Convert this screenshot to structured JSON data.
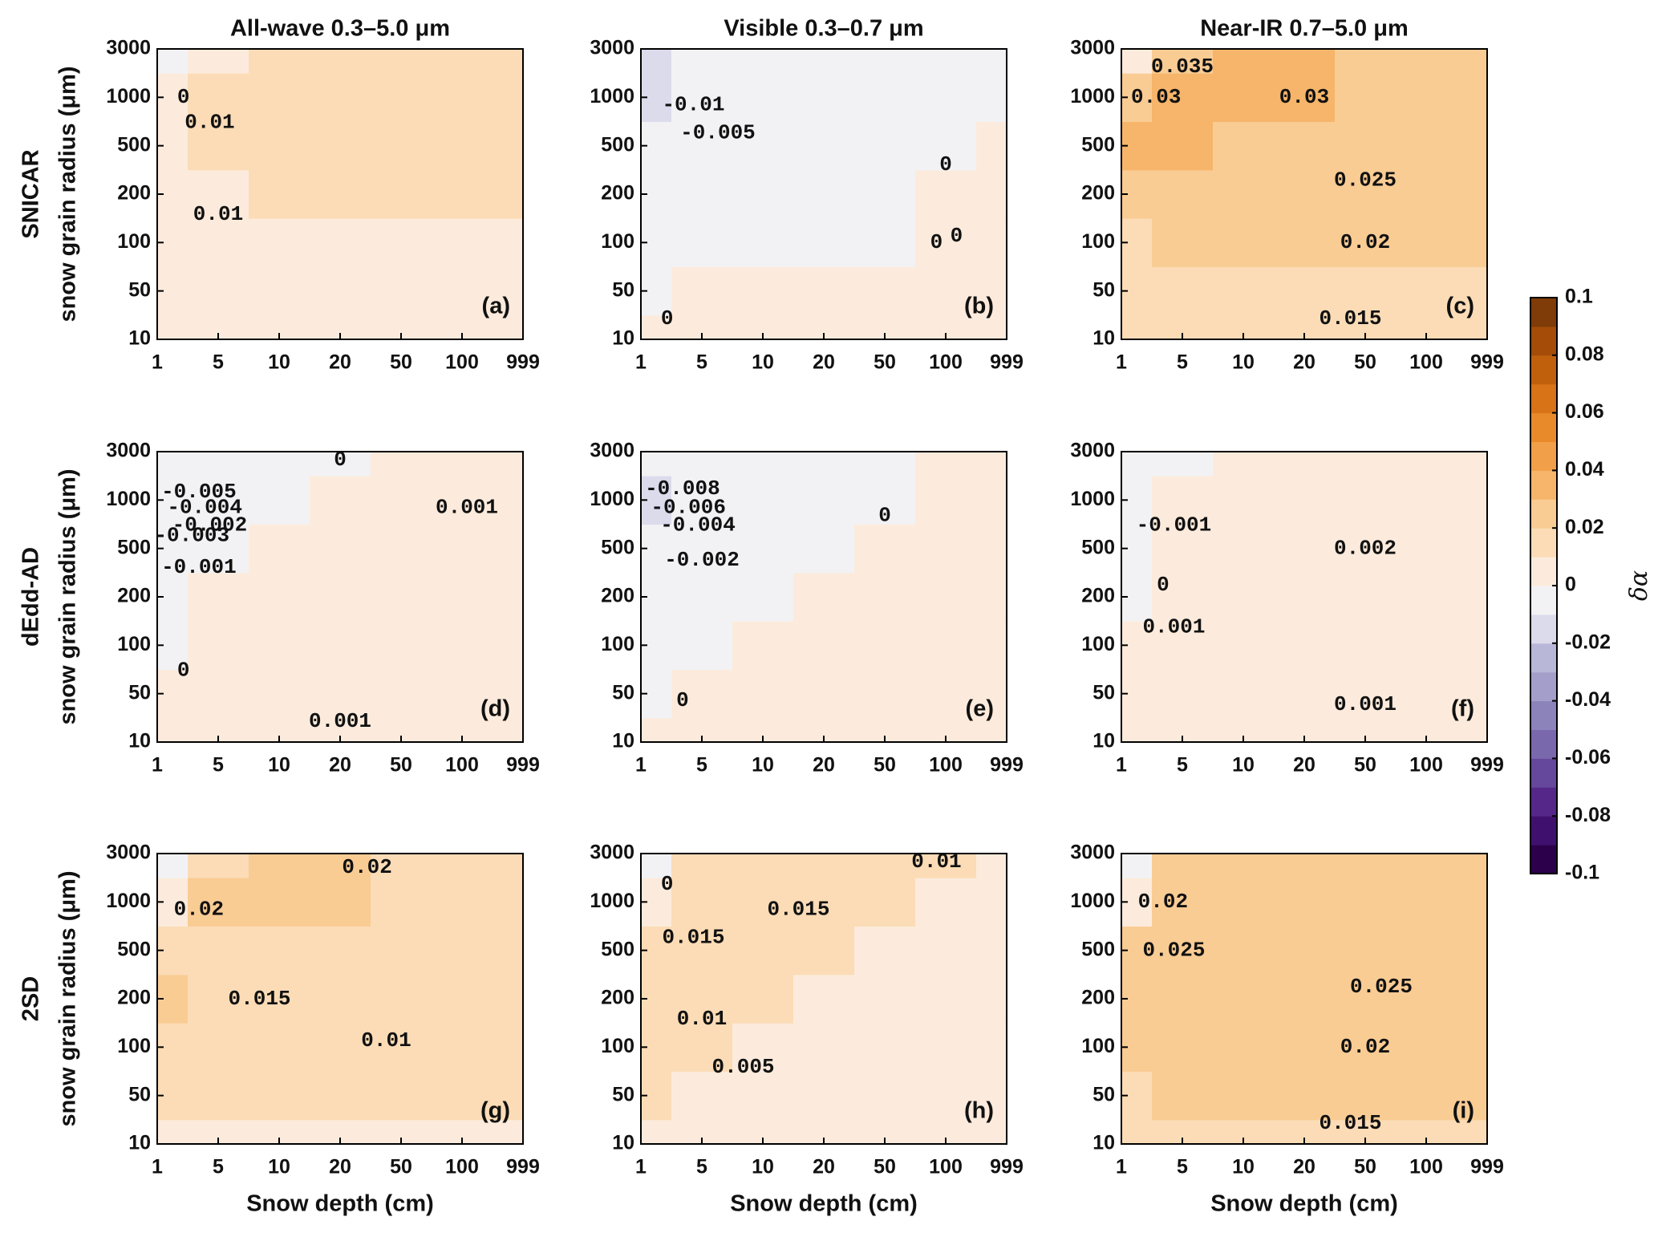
{
  "chart_data": [
    {
      "type": "contour",
      "title": "All-wave 0.3–5.0 μm",
      "row_label": "SNICAR",
      "ylabel": "snow grain radius (μm)",
      "panel_label": "(a)",
      "x": [
        1,
        5,
        10,
        20,
        50,
        100,
        999
      ],
      "y": [
        10,
        50,
        100,
        200,
        500,
        1000,
        3000
      ],
      "z": [
        [
          0.005,
          0.006,
          0.007,
          0.008,
          0.008,
          0.008,
          0.008
        ],
        [
          0.006,
          0.008,
          0.008,
          0.009,
          0.009,
          0.009,
          0.009
        ],
        [
          0.006,
          0.009,
          0.009,
          0.0095,
          0.0095,
          0.0095,
          0.0095
        ],
        [
          0.006,
          0.009,
          0.011,
          0.011,
          0.011,
          0.011,
          0.011
        ],
        [
          0.004,
          0.011,
          0.013,
          0.013,
          0.013,
          0.013,
          0.013
        ],
        [
          0.002,
          0.011,
          0.013,
          0.013,
          0.013,
          0.013,
          0.013
        ],
        [
          -0.002,
          0.008,
          0.012,
          0.013,
          0.013,
          0.013,
          0.013
        ]
      ],
      "contour_labels": [
        {
          "value": 0,
          "x": 2,
          "y": 1000
        },
        {
          "value": 0.01,
          "x": 4,
          "y": 700
        },
        {
          "value": 0.01,
          "x": 5,
          "y": 150
        }
      ]
    },
    {
      "type": "contour",
      "title": "Visible 0.3–0.7 μm",
      "panel_label": "(b)",
      "x": [
        1,
        5,
        10,
        20,
        50,
        100,
        999
      ],
      "y": [
        10,
        50,
        100,
        200,
        500,
        1000,
        3000
      ],
      "z": [
        [
          0.001,
          0.002,
          0.002,
          0.002,
          0.002,
          0.002,
          0.002
        ],
        [
          -0.002,
          0.001,
          0.001,
          0.001,
          0.001,
          0.001,
          0.001
        ],
        [
          -0.004,
          -0.002,
          -0.001,
          -0.001,
          -0.001,
          0.001,
          0.001
        ],
        [
          -0.006,
          -0.003,
          -0.002,
          -0.002,
          -0.001,
          0.001,
          0.001
        ],
        [
          -0.008,
          -0.004,
          -0.003,
          -0.002,
          -0.002,
          -0.001,
          0.001
        ],
        [
          -0.012,
          -0.005,
          -0.003,
          -0.002,
          -0.002,
          -0.002,
          -0.001
        ],
        [
          -0.014,
          -0.008,
          -0.003,
          -0.002,
          -0.002,
          -0.002,
          -0.002
        ]
      ],
      "contour_labels": [
        {
          "value": -0.01,
          "x": 4,
          "y": 900
        },
        {
          "value": -0.005,
          "x": 6,
          "y": 600
        },
        {
          "value": 0,
          "x": 100,
          "y": 350
        },
        {
          "value": 0,
          "x": 90,
          "y": 100
        },
        {
          "value": 0,
          "x": 150,
          "y": 110
        },
        {
          "value": 0,
          "x": 2,
          "y": 20
        }
      ]
    },
    {
      "type": "contour",
      "title": "Near-IR 0.7–5.0 μm",
      "panel_label": "(c)",
      "x": [
        1,
        5,
        10,
        20,
        50,
        100,
        999
      ],
      "y": [
        10,
        50,
        100,
        200,
        500,
        1000,
        3000
      ],
      "z": [
        [
          0.012,
          0.014,
          0.015,
          0.015,
          0.015,
          0.015,
          0.015
        ],
        [
          0.016,
          0.018,
          0.019,
          0.019,
          0.019,
          0.019,
          0.019
        ],
        [
          0.019,
          0.021,
          0.021,
          0.021,
          0.021,
          0.021,
          0.021
        ],
        [
          0.026,
          0.023,
          0.023,
          0.023,
          0.023,
          0.023,
          0.023
        ],
        [
          0.032,
          0.031,
          0.028,
          0.026,
          0.025,
          0.025,
          0.025
        ],
        [
          0.025,
          0.033,
          0.034,
          0.031,
          0.028,
          0.027,
          0.027
        ],
        [
          0.005,
          0.028,
          0.034,
          0.032,
          0.029,
          0.027,
          0.027
        ]
      ],
      "contour_labels": [
        {
          "value": 0.03,
          "x": 2.5,
          "y": 1000
        },
        {
          "value": 0.035,
          "x": 5,
          "y": 2000
        },
        {
          "value": 0.03,
          "x": 20,
          "y": 1000
        },
        {
          "value": 0.025,
          "x": 50,
          "y": 260
        },
        {
          "value": 0.02,
          "x": 50,
          "y": 100
        },
        {
          "value": 0.015,
          "x": 40,
          "y": 20
        }
      ]
    },
    {
      "type": "contour",
      "row_label": "dEdd-AD",
      "ylabel": "snow grain radius (μm)",
      "panel_label": "(d)",
      "x": [
        1,
        5,
        10,
        20,
        50,
        100,
        999
      ],
      "y": [
        10,
        50,
        100,
        200,
        500,
        1000,
        3000
      ],
      "z": [
        [
          0.0005,
          0.0006,
          0.0008,
          0.0009,
          0.001,
          0.001,
          0.001
        ],
        [
          0.0002,
          0.0005,
          0.0005,
          0.0005,
          0.0005,
          0.0005,
          0.0005
        ],
        [
          -0.001,
          0.0005,
          0.0005,
          0.0005,
          0.0005,
          0.0005,
          0.0005
        ],
        [
          -0.004,
          0.0003,
          0.0005,
          0.0005,
          0.0005,
          0.0005,
          0.0005
        ],
        [
          -0.008,
          -0.002,
          0.0004,
          0.0005,
          0.0005,
          0.0007,
          0.0009
        ],
        [
          -0.008,
          -0.004,
          -0.001,
          0.0002,
          0.0008,
          0.001,
          0.001
        ],
        [
          -0.005,
          -0.003,
          -0.002,
          -0.0003,
          0.0005,
          0.0008,
          0.0008
        ]
      ],
      "contour_labels": [
        {
          "value": -0.005,
          "x": 3,
          "y": 1200
        },
        {
          "value": -0.004,
          "x": 3.5,
          "y": 900
        },
        {
          "value": -0.003,
          "x": 2.5,
          "y": 600
        },
        {
          "value": -0.002,
          "x": 4,
          "y": 700
        },
        {
          "value": -0.001,
          "x": 3,
          "y": 350
        },
        {
          "value": 0,
          "x": 2,
          "y": 70
        },
        {
          "value": 0,
          "x": 20,
          "y": 2500
        },
        {
          "value": 0.001,
          "x": 20,
          "y": 20
        },
        {
          "value": 0.001,
          "x": 120,
          "y": 900
        }
      ]
    },
    {
      "type": "contour",
      "panel_label": "(e)",
      "x": [
        1,
        5,
        10,
        20,
        50,
        100,
        999
      ],
      "y": [
        10,
        50,
        100,
        200,
        500,
        1000,
        3000
      ],
      "z": [
        [
          0.001,
          0.002,
          0.002,
          0.002,
          0.002,
          0.002,
          0.002
        ],
        [
          -0.001,
          0.001,
          0.001,
          0.001,
          0.001,
          0.001,
          0.001
        ],
        [
          -0.003,
          -0.001,
          0.0005,
          0.001,
          0.001,
          0.001,
          0.001
        ],
        [
          -0.005,
          -0.002,
          -0.001,
          0.0005,
          0.001,
          0.001,
          0.001
        ],
        [
          -0.007,
          -0.003,
          -0.002,
          -0.001,
          0.0005,
          0.001,
          0.001
        ],
        [
          -0.011,
          -0.005,
          -0.002,
          -0.001,
          -0.0005,
          0.001,
          0.001
        ],
        [
          -0.009,
          -0.006,
          -0.003,
          -0.002,
          -0.001,
          0.0005,
          0.001
        ]
      ],
      "contour_labels": [
        {
          "value": -0.008,
          "x": 3,
          "y": 1300
        },
        {
          "value": -0.006,
          "x": 3.5,
          "y": 900
        },
        {
          "value": -0.004,
          "x": 4.5,
          "y": 700
        },
        {
          "value": -0.002,
          "x": 5,
          "y": 400
        },
        {
          "value": 0,
          "x": 50,
          "y": 800
        },
        {
          "value": 0,
          "x": 3,
          "y": 40
        }
      ]
    },
    {
      "type": "contour",
      "panel_label": "(f)",
      "x": [
        1,
        5,
        10,
        20,
        50,
        100,
        999
      ],
      "y": [
        10,
        50,
        100,
        200,
        500,
        1000,
        3000
      ],
      "z": [
        [
          0.0008,
          0.0009,
          0.001,
          0.001,
          0.001,
          0.001,
          0.001
        ],
        [
          0.0005,
          0.0012,
          0.0012,
          0.0012,
          0.0012,
          0.0012,
          0.0012
        ],
        [
          0.0001,
          0.0013,
          0.0014,
          0.0014,
          0.0014,
          0.0014,
          0.0014
        ],
        [
          -0.002,
          0.0014,
          0.0016,
          0.0017,
          0.0018,
          0.0018,
          0.0018
        ],
        [
          -0.004,
          0.0005,
          0.0017,
          0.0019,
          0.002,
          0.002,
          0.002
        ],
        [
          -0.005,
          0.0002,
          0.0018,
          0.002,
          0.0022,
          0.0022,
          0.0022
        ],
        [
          -0.003,
          -0.0005,
          0.0018,
          0.002,
          0.0022,
          0.0022,
          0.0022
        ]
      ],
      "contour_labels": [
        {
          "value": -0.001,
          "x": 4,
          "y": 700
        },
        {
          "value": 0,
          "x": 3,
          "y": 250
        },
        {
          "value": 0.001,
          "x": 4,
          "y": 130
        },
        {
          "value": 0.002,
          "x": 50,
          "y": 500
        },
        {
          "value": 0.001,
          "x": 50,
          "y": 35
        }
      ]
    },
    {
      "type": "contour",
      "row_label": "2SD",
      "ylabel": "snow grain radius (μm)",
      "xlabel": "Snow depth (cm)",
      "panel_label": "(g)",
      "x": [
        1,
        5,
        10,
        20,
        50,
        100,
        999
      ],
      "y": [
        10,
        50,
        100,
        200,
        500,
        1000,
        3000
      ],
      "z": [
        [
          0.008,
          0.009,
          0.009,
          0.009,
          0.009,
          0.009,
          0.009
        ],
        [
          0.01,
          0.011,
          0.011,
          0.011,
          0.011,
          0.011,
          0.011
        ],
        [
          0.012,
          0.013,
          0.013,
          0.012,
          0.011,
          0.011,
          0.011
        ],
        [
          0.021,
          0.015,
          0.015,
          0.014,
          0.013,
          0.013,
          0.013
        ],
        [
          0.013,
          0.018,
          0.017,
          0.016,
          0.015,
          0.015,
          0.015
        ],
        [
          0.006,
          0.02,
          0.022,
          0.021,
          0.018,
          0.017,
          0.017
        ],
        [
          -0.002,
          0.017,
          0.02,
          0.02,
          0.019,
          0.018,
          0.018
        ]
      ],
      "contour_labels": [
        {
          "value": 0.02,
          "x": 3,
          "y": 900
        },
        {
          "value": 0.02,
          "x": 30,
          "y": 2200
        },
        {
          "value": 0.015,
          "x": 8,
          "y": 200
        },
        {
          "value": 0.01,
          "x": 40,
          "y": 110
        }
      ]
    },
    {
      "type": "contour",
      "xlabel": "Snow depth (cm)",
      "panel_label": "(h)",
      "x": [
        1,
        5,
        10,
        20,
        50,
        100,
        999
      ],
      "y": [
        10,
        50,
        100,
        200,
        500,
        1000,
        3000
      ],
      "z": [
        [
          0.006,
          0.006,
          0.005,
          0.004,
          0.004,
          0.004,
          0.004
        ],
        [
          0.011,
          0.009,
          0.006,
          0.005,
          0.004,
          0.004,
          0.004
        ],
        [
          0.012,
          0.012,
          0.009,
          0.006,
          0.005,
          0.004,
          0.004
        ],
        [
          0.013,
          0.013,
          0.012,
          0.009,
          0.006,
          0.005,
          0.005
        ],
        [
          0.012,
          0.015,
          0.014,
          0.012,
          0.009,
          0.007,
          0.006
        ],
        [
          0.008,
          0.016,
          0.016,
          0.015,
          0.012,
          0.009,
          0.008
        ],
        [
          -0.002,
          0.013,
          0.016,
          0.016,
          0.014,
          0.011,
          0.009
        ]
      ],
      "contour_labels": [
        {
          "value": 0,
          "x": 2,
          "y": 1500
        },
        {
          "value": 0.015,
          "x": 4,
          "y": 600
        },
        {
          "value": 0.015,
          "x": 15,
          "y": 900
        },
        {
          "value": 0.01,
          "x": 90,
          "y": 2500
        },
        {
          "value": 0.01,
          "x": 5,
          "y": 150
        },
        {
          "value": 0.005,
          "x": 8,
          "y": 75
        }
      ]
    },
    {
      "type": "contour",
      "xlabel": "Snow depth (cm)",
      "panel_label": "(i)",
      "x": [
        1,
        5,
        10,
        20,
        50,
        100,
        999
      ],
      "y": [
        10,
        50,
        100,
        200,
        500,
        1000,
        3000
      ],
      "z": [
        [
          0.013,
          0.014,
          0.015,
          0.015,
          0.015,
          0.015,
          0.015
        ],
        [
          0.019,
          0.02,
          0.02,
          0.02,
          0.02,
          0.02,
          0.02
        ],
        [
          0.021,
          0.022,
          0.022,
          0.022,
          0.022,
          0.022,
          0.022
        ],
        [
          0.024,
          0.024,
          0.025,
          0.025,
          0.025,
          0.025,
          0.025
        ],
        [
          0.02,
          0.026,
          0.026,
          0.026,
          0.026,
          0.026,
          0.026
        ],
        [
          0.008,
          0.026,
          0.026,
          0.026,
          0.026,
          0.026,
          0.026
        ],
        [
          -0.001,
          0.025,
          0.026,
          0.026,
          0.026,
          0.026,
          0.026
        ]
      ],
      "contour_labels": [
        {
          "value": 0.02,
          "x": 3,
          "y": 1000
        },
        {
          "value": 0.025,
          "x": 4,
          "y": 500
        },
        {
          "value": 0.025,
          "x": 60,
          "y": 250
        },
        {
          "value": 0.02,
          "x": 50,
          "y": 100
        },
        {
          "value": 0.015,
          "x": 40,
          "y": 20
        }
      ]
    }
  ],
  "colorbar": {
    "type": "colorbar",
    "label": "δα",
    "lim": [
      -0.1,
      0.1
    ],
    "ticks": [
      -0.1,
      -0.08,
      -0.06,
      -0.04,
      -0.02,
      0,
      0.02,
      0.04,
      0.06,
      0.08,
      0.1
    ],
    "colors": [
      "#2d004b",
      "#40106e",
      "#542788",
      "#65489c",
      "#7a68ad",
      "#8c83bb",
      "#a39fca",
      "#b9b7d8",
      "#dcdbec",
      "#f2f2f4",
      "#fcebdc",
      "#fbdcb6",
      "#f9cc94",
      "#f6b56a",
      "#f19f48",
      "#e88a2a",
      "#d87317",
      "#c1600c",
      "#a44c08",
      "#7f3b08"
    ]
  }
}
